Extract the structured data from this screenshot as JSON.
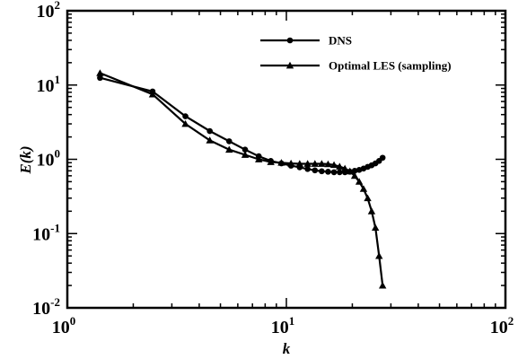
{
  "chart_data": {
    "type": "line",
    "xscale": "log",
    "yscale": "log",
    "xlim": [
      1,
      100
    ],
    "ylim": [
      0.01,
      100
    ],
    "xlabel": "k",
    "ylabel": "E(k)",
    "x_ticks": [
      {
        "value": 1,
        "base": "10",
        "exp": "0"
      },
      {
        "value": 10,
        "base": "10",
        "exp": "1"
      },
      {
        "value": 100,
        "base": "10",
        "exp": "2"
      }
    ],
    "y_ticks": [
      {
        "value": 0.01,
        "base": "10",
        "exp": "-2"
      },
      {
        "value": 0.1,
        "base": "10",
        "exp": "-1"
      },
      {
        "value": 1,
        "base": "10",
        "exp": "0"
      },
      {
        "value": 10,
        "base": "10",
        "exp": "1"
      },
      {
        "value": 100,
        "base": "10",
        "exp": "2"
      }
    ],
    "legend_position": "top-right",
    "grid": false,
    "series": [
      {
        "name": "DNS",
        "marker": "circle",
        "points": [
          [
            1.41,
            12.5
          ],
          [
            2.45,
            8.2
          ],
          [
            3.46,
            3.8
          ],
          [
            4.47,
            2.4
          ],
          [
            5.48,
            1.75
          ],
          [
            6.48,
            1.35
          ],
          [
            7.48,
            1.1
          ],
          [
            8.49,
            0.95
          ],
          [
            9.49,
            0.88
          ],
          [
            10.5,
            0.82
          ],
          [
            11.5,
            0.78
          ],
          [
            12.5,
            0.74
          ],
          [
            13.5,
            0.71
          ],
          [
            14.5,
            0.69
          ],
          [
            15.5,
            0.68
          ],
          [
            16.5,
            0.67
          ],
          [
            17.5,
            0.67
          ],
          [
            18.5,
            0.67
          ],
          [
            19.5,
            0.68
          ],
          [
            20.5,
            0.7
          ],
          [
            21.5,
            0.72
          ],
          [
            22.5,
            0.75
          ],
          [
            23.5,
            0.79
          ],
          [
            24.5,
            0.83
          ],
          [
            25.5,
            0.88
          ],
          [
            26.5,
            0.95
          ],
          [
            27.5,
            1.05
          ]
        ]
      },
      {
        "name": "Optimal LES (sampling)",
        "marker": "triangle",
        "points": [
          [
            1.41,
            14.5
          ],
          [
            2.45,
            7.5
          ],
          [
            3.46,
            3.0
          ],
          [
            4.47,
            1.8
          ],
          [
            5.48,
            1.35
          ],
          [
            6.48,
            1.15
          ],
          [
            7.48,
            1.0
          ],
          [
            8.49,
            0.92
          ],
          [
            9.49,
            0.9
          ],
          [
            10.5,
            0.88
          ],
          [
            11.5,
            0.87
          ],
          [
            12.5,
            0.87
          ],
          [
            13.5,
            0.87
          ],
          [
            14.5,
            0.87
          ],
          [
            15.5,
            0.86
          ],
          [
            16.5,
            0.84
          ],
          [
            17.5,
            0.8
          ],
          [
            18.5,
            0.75
          ],
          [
            19.5,
            0.69
          ],
          [
            20.5,
            0.6
          ],
          [
            21.5,
            0.5
          ],
          [
            22.5,
            0.4
          ],
          [
            23.5,
            0.3
          ],
          [
            24.5,
            0.2
          ],
          [
            25.5,
            0.12
          ],
          [
            26.5,
            0.05
          ],
          [
            27.5,
            0.02
          ]
        ]
      }
    ]
  }
}
